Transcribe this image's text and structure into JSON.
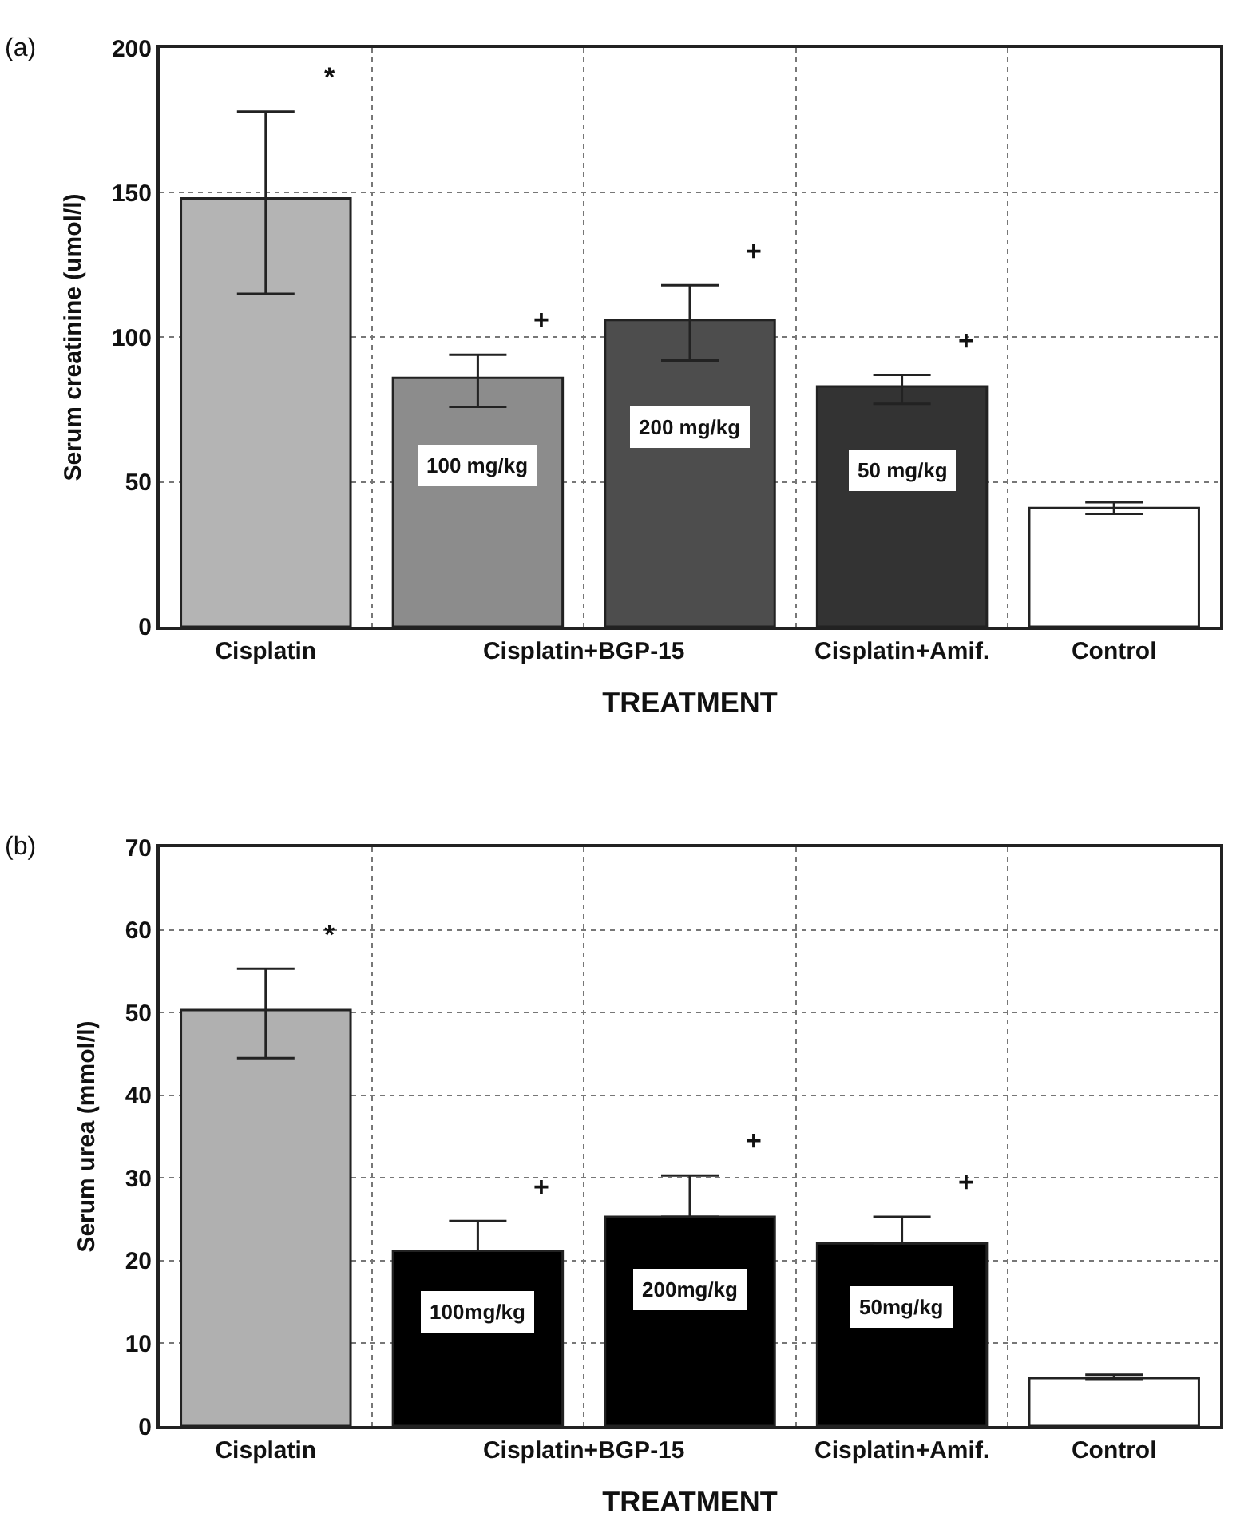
{
  "chart_data": [
    {
      "type": "bar",
      "title": "(a)",
      "xlabel": "TREATMENT",
      "ylabel": "Serum creatinine (umol/l)",
      "categories": [
        "Cisplatin",
        "Cisplatin+BGP-15",
        null,
        "Cisplatin+Amif.",
        "Control"
      ],
      "values": [
        148,
        86,
        106,
        83,
        41
      ],
      "colors": [
        "#b4b4b4",
        "#8c8c8c",
        "#4d4d4d",
        "#333333",
        "#ffffff"
      ],
      "errors": [
        [
          115,
          178
        ],
        [
          76,
          94
        ],
        [
          92,
          118
        ],
        [
          77,
          87
        ],
        [
          39,
          43
        ]
      ],
      "ylim": [
        0,
        200
      ],
      "yticks": [
        0,
        50,
        100,
        150,
        200
      ],
      "grid": true,
      "annotations": [
        "*",
        "+",
        "+",
        "+",
        "100 mg/kg",
        "200 mg/kg",
        "50 mg/kg"
      ]
    },
    {
      "type": "bar",
      "title": "(b)",
      "xlabel": "TREATMENT",
      "ylabel": "Serum urea (mmol/l)",
      "categories": [
        "Cisplatin",
        "Cisplatin+BGP-15",
        null,
        "Cisplatin+Amif.",
        "Control"
      ],
      "values": [
        50.3,
        21.2,
        25.3,
        22.1,
        5.8
      ],
      "colors": [
        "#b0b0b0",
        "#000000",
        "#000000",
        "#000000",
        "#ffffff"
      ],
      "errors": [
        [
          44.5,
          55.3
        ],
        [
          21.2,
          24.8
        ],
        [
          25.3,
          30.3
        ],
        [
          22.1,
          25.3
        ],
        [
          5.6,
          6.2
        ]
      ],
      "ylim": [
        0,
        70
      ],
      "yticks": [
        0,
        10,
        20,
        30,
        40,
        50,
        60,
        70
      ],
      "grid": true,
      "annotations": [
        "*",
        "+",
        "+",
        "+",
        "100mg/kg",
        "200mg/kg",
        "50mg/kg"
      ]
    }
  ]
}
